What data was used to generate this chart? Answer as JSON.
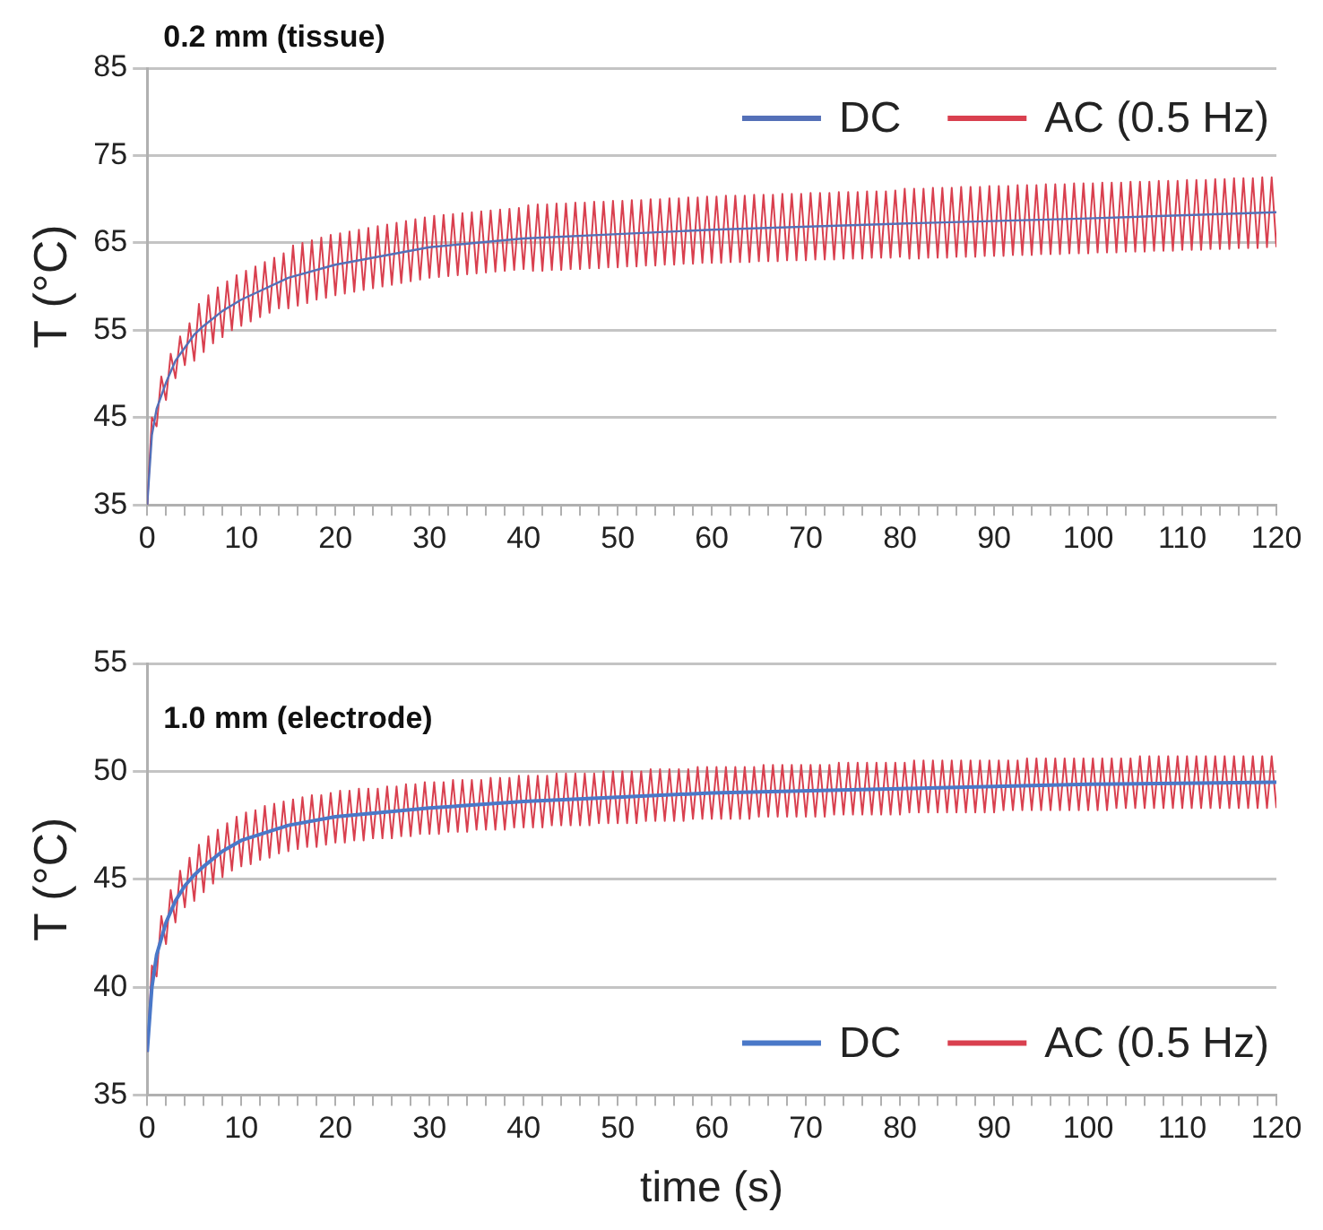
{
  "chart_data": [
    {
      "type": "line",
      "title": "0.2 mm (tissue)",
      "ylabel": "T (°C)",
      "ylim": [
        35,
        85
      ],
      "yticks": [
        35,
        45,
        55,
        65,
        75,
        85
      ],
      "xlim": [
        0,
        120
      ],
      "xticks": [
        0,
        {
          "value": 2,
          "label": null
        },
        {
          "value": 4,
          "label": null
        },
        {
          "value": 6,
          "label": null
        },
        {
          "value": 8,
          "label": null
        },
        10,
        {
          "value": 12,
          "label": null
        },
        {
          "value": 14,
          "label": null
        },
        {
          "value": 16,
          "label": null
        },
        {
          "value": 18,
          "label": null
        },
        20,
        {
          "value": 22,
          "label": null
        },
        {
          "value": 24,
          "label": null
        },
        {
          "value": 26,
          "label": null
        },
        {
          "value": 28,
          "label": null
        },
        30,
        {
          "value": 32,
          "label": null
        },
        {
          "value": 34,
          "label": null
        },
        {
          "value": 36,
          "label": null
        },
        {
          "value": 38,
          "label": null
        },
        40,
        {
          "value": 42,
          "label": null
        },
        {
          "value": 44,
          "label": null
        },
        {
          "value": 46,
          "label": null
        },
        {
          "value": 48,
          "label": null
        },
        50,
        {
          "value": 52,
          "label": null
        },
        {
          "value": 54,
          "label": null
        },
        {
          "value": 56,
          "label": null
        },
        {
          "value": 58,
          "label": null
        },
        60,
        {
          "value": 62,
          "label": null
        },
        {
          "value": 64,
          "label": null
        },
        {
          "value": 66,
          "label": null
        },
        {
          "value": 68,
          "label": null
        },
        70,
        {
          "value": 72,
          "label": null
        },
        {
          "value": 74,
          "label": null
        },
        {
          "value": 76,
          "label": null
        },
        {
          "value": 78,
          "label": null
        },
        80,
        {
          "value": 82,
          "label": null
        },
        {
          "value": 84,
          "label": null
        },
        {
          "value": 86,
          "label": null
        },
        {
          "value": 88,
          "label": null
        },
        90,
        {
          "value": 92,
          "label": null
        },
        {
          "value": 94,
          "label": null
        },
        {
          "value": 96,
          "label": null
        },
        {
          "value": 98,
          "label": null
        },
        100,
        {
          "value": 102,
          "label": null
        },
        {
          "value": 104,
          "label": null
        },
        {
          "value": 106,
          "label": null
        },
        {
          "value": 108,
          "label": null
        },
        110,
        {
          "value": 112,
          "label": null
        },
        {
          "value": 114,
          "label": null
        },
        {
          "value": 116,
          "label": null
        },
        {
          "value": 118,
          "label": null
        },
        120
      ],
      "grid": "y",
      "legend": "top right",
      "marker": "none",
      "line_style": "solid",
      "x": [
        0,
        0.5,
        1,
        1.5,
        2,
        2.5,
        3,
        3.5,
        4,
        4.5,
        5,
        5.5,
        6,
        6.5,
        7,
        7.5,
        8,
        8.5,
        9,
        9.5,
        10,
        10.5,
        11,
        11.5,
        12,
        12.5,
        13,
        13.5,
        14,
        14.5,
        15,
        15.5,
        16,
        16.5,
        17,
        17.5,
        18,
        18.5,
        19,
        19.5,
        20,
        20.5,
        21,
        21.5,
        22,
        22.5,
        23,
        23.5,
        24,
        24.5,
        25,
        25.5,
        26,
        26.5,
        27,
        27.5,
        28,
        28.5,
        29,
        29.5,
        30,
        30.5,
        31,
        31.5,
        32,
        32.5,
        33,
        33.5,
        34,
        34.5,
        35,
        35.5,
        36,
        36.5,
        37,
        37.5,
        38,
        38.5,
        39,
        39.5,
        40,
        40.5,
        41,
        41.5,
        42,
        42.5,
        43,
        43.5,
        44,
        44.5,
        45,
        45.5,
        46,
        46.5,
        47,
        47.5,
        48,
        48.5,
        49,
        49.5,
        50,
        50.5,
        51,
        51.5,
        52,
        52.5,
        53,
        53.5,
        54,
        54.5,
        55,
        55.5,
        56,
        56.5,
        57,
        57.5,
        58,
        58.5,
        59,
        59.5,
        60,
        60.5,
        61,
        61.5,
        62,
        62.5,
        63,
        63.5,
        64,
        64.5,
        65,
        65.5,
        66,
        66.5,
        67,
        67.5,
        68,
        68.5,
        69,
        69.5,
        70,
        70.5,
        71,
        71.5,
        72,
        72.5,
        73,
        73.5,
        74,
        74.5,
        75,
        75.5,
        76,
        76.5,
        77,
        77.5,
        78,
        78.5,
        79,
        79.5,
        80,
        80.5,
        81,
        81.5,
        82,
        82.5,
        83,
        83.5,
        84,
        84.5,
        85,
        85.5,
        86,
        86.5,
        87,
        87.5,
        88,
        88.5,
        89,
        89.5,
        90,
        90.5,
        91,
        91.5,
        92,
        92.5,
        93,
        93.5,
        94,
        94.5,
        95,
        95.5,
        96,
        96.5,
        97,
        97.5,
        98,
        98.5,
        99,
        99.5,
        100,
        100.5,
        101,
        101.5,
        102,
        102.5,
        103,
        103.5,
        104,
        104.5,
        105,
        105.5,
        106,
        106.5,
        107,
        107.5,
        108,
        108.5,
        109,
        109.5,
        110,
        110.5,
        111,
        111.5,
        112,
        112.5,
        113,
        113.5,
        114,
        114.5,
        115,
        115.5,
        116,
        116.5,
        117,
        117.5,
        118,
        118.5,
        119,
        119.5,
        120
      ],
      "series": [
        {
          "name": "DC",
          "color": "#5470b8",
          "x": [
            0,
            0.5,
            1,
            2,
            3,
            4,
            5,
            6,
            8,
            10,
            12,
            15,
            20,
            25,
            30,
            40,
            50,
            60,
            80,
            100,
            120
          ],
          "values": [
            35,
            43,
            46,
            49,
            51.5,
            53,
            54.5,
            55.5,
            57.2,
            58.5,
            59.5,
            61,
            62.5,
            63.5,
            64.5,
            65.5,
            66,
            66.5,
            67.2,
            67.8,
            68.5
          ]
        },
        {
          "name": "AC (0.5 Hz)",
          "color": "#d9404f",
          "values": [
            35,
            45,
            44,
            49.7,
            47,
            52.3,
            49.5,
            54.3,
            51,
            55.8,
            51.5,
            58,
            52.5,
            59,
            53.5,
            59.9,
            54.2,
            60.6,
            55,
            61.3,
            55.5,
            61.8,
            56,
            62.3,
            56.5,
            62.8,
            57,
            63.3,
            57.5,
            63.8,
            57.5,
            64.7,
            57.8,
            65,
            58.1,
            65.3,
            58.5,
            65.6,
            58.7,
            65.9,
            59,
            66.1,
            59.2,
            66.3,
            59.4,
            66.5,
            59.6,
            66.7,
            59.8,
            66.9,
            60,
            67.1,
            60.2,
            67.3,
            60.4,
            67.5,
            60.6,
            67.7,
            60.8,
            67.9,
            61,
            68.1,
            61.1,
            68.2,
            61.2,
            68.3,
            61.3,
            68.4,
            61.4,
            68.5,
            61.5,
            68.6,
            61.6,
            68.7,
            61.7,
            68.8,
            61.8,
            68.9,
            61.9,
            69,
            62,
            69.3,
            61.8,
            69.4,
            61.8,
            69.4,
            61.9,
            69.5,
            61.9,
            69.5,
            62,
            69.6,
            62,
            69.6,
            62.1,
            69.7,
            62.1,
            69.7,
            62.2,
            69.8,
            62.2,
            69.8,
            62.3,
            69.9,
            62.3,
            69.9,
            62.4,
            70,
            62.4,
            70,
            62.5,
            70.1,
            62.5,
            70.1,
            62.6,
            70.2,
            62.6,
            70.2,
            62.7,
            70.3,
            62.7,
            70.3,
            62.7,
            70.4,
            62.8,
            70.4,
            62.8,
            70.4,
            62.8,
            70.5,
            62.9,
            70.5,
            62.9,
            70.5,
            62.9,
            70.6,
            63,
            70.6,
            63,
            70.6,
            63,
            70.7,
            63.1,
            70.7,
            63.1,
            70.7,
            63.1,
            70.8,
            63.2,
            70.8,
            63.2,
            70.8,
            63.2,
            70.9,
            63.3,
            70.9,
            63.3,
            70.9,
            63.3,
            71,
            63.4,
            71.2,
            63.2,
            71.2,
            63.2,
            71.2,
            63.3,
            71.3,
            63.3,
            71.3,
            63.3,
            71.3,
            63.4,
            71.4,
            63.4,
            71.4,
            63.4,
            71.4,
            63.5,
            71.5,
            63.5,
            71.5,
            63.5,
            71.5,
            63.6,
            71.6,
            63.6,
            71.6,
            63.6,
            71.6,
            63.7,
            71.7,
            63.7,
            71.7,
            63.7,
            71.7,
            63.8,
            71.8,
            63.8,
            71.8,
            63.8,
            71.8,
            63.9,
            71.9,
            63.9,
            71.9,
            63.9,
            71.9,
            64,
            72,
            64,
            72,
            64,
            72,
            64.1,
            72.1,
            64.1,
            72.1,
            64.1,
            72.1,
            64.2,
            72.2,
            64.2,
            72.2,
            64.2,
            72.2,
            64.3,
            72.3,
            64.3,
            72.3,
            64.3,
            72.4,
            64.4,
            72.4,
            64.4,
            72.4,
            64.4,
            72.5,
            64.5,
            72.5,
            64.5
          ]
        }
      ]
    },
    {
      "type": "line",
      "title": "1.0 mm (electrode)",
      "xlabel": "time (s)",
      "ylabel": "T (°C)",
      "ylim": [
        35,
        55
      ],
      "yticks": [
        35,
        40,
        45,
        50,
        55
      ],
      "xlim": [
        0,
        120
      ],
      "xticks": [
        0,
        {
          "value": 2,
          "label": null
        },
        {
          "value": 4,
          "label": null
        },
        {
          "value": 6,
          "label": null
        },
        {
          "value": 8,
          "label": null
        },
        10,
        {
          "value": 12,
          "label": null
        },
        {
          "value": 14,
          "label": null
        },
        {
          "value": 16,
          "label": null
        },
        {
          "value": 18,
          "label": null
        },
        20,
        {
          "value": 22,
          "label": null
        },
        {
          "value": 24,
          "label": null
        },
        {
          "value": 26,
          "label": null
        },
        {
          "value": 28,
          "label": null
        },
        30,
        {
          "value": 32,
          "label": null
        },
        {
          "value": 34,
          "label": null
        },
        {
          "value": 36,
          "label": null
        },
        {
          "value": 38,
          "label": null
        },
        40,
        {
          "value": 42,
          "label": null
        },
        {
          "value": 44,
          "label": null
        },
        {
          "value": 46,
          "label": null
        },
        {
          "value": 48,
          "label": null
        },
        50,
        {
          "value": 52,
          "label": null
        },
        {
          "value": 54,
          "label": null
        },
        {
          "value": 56,
          "label": null
        },
        {
          "value": 58,
          "label": null
        },
        60,
        {
          "value": 62,
          "label": null
        },
        {
          "value": 64,
          "label": null
        },
        {
          "value": 66,
          "label": null
        },
        {
          "value": 68,
          "label": null
        },
        70,
        {
          "value": 72,
          "label": null
        },
        {
          "value": 74,
          "label": null
        },
        {
          "value": 76,
          "label": null
        },
        {
          "value": 78,
          "label": null
        },
        80,
        {
          "value": 82,
          "label": null
        },
        {
          "value": 84,
          "label": null
        },
        {
          "value": 86,
          "label": null
        },
        {
          "value": 88,
          "label": null
        },
        90,
        {
          "value": 92,
          "label": null
        },
        {
          "value": 94,
          "label": null
        },
        {
          "value": 96,
          "label": null
        },
        {
          "value": 98,
          "label": null
        },
        100,
        {
          "value": 102,
          "label": null
        },
        {
          "value": 104,
          "label": null
        },
        {
          "value": 106,
          "label": null
        },
        {
          "value": 108,
          "label": null
        },
        110,
        {
          "value": 112,
          "label": null
        },
        {
          "value": 114,
          "label": null
        },
        {
          "value": 116,
          "label": null
        },
        {
          "value": 118,
          "label": null
        },
        120
      ],
      "grid": "y",
      "legend": "bottom right",
      "marker": "none",
      "line_style": "solid",
      "x": [
        0,
        0.5,
        1,
        1.5,
        2,
        2.5,
        3,
        3.5,
        4,
        4.5,
        5,
        5.5,
        6,
        6.5,
        7,
        7.5,
        8,
        8.5,
        9,
        9.5,
        10,
        10.5,
        11,
        11.5,
        12,
        12.5,
        13,
        13.5,
        14,
        14.5,
        15,
        15.5,
        16,
        16.5,
        17,
        17.5,
        18,
        18.5,
        19,
        19.5,
        20,
        20.5,
        21,
        21.5,
        22,
        22.5,
        23,
        23.5,
        24,
        24.5,
        25,
        25.5,
        26,
        26.5,
        27,
        27.5,
        28,
        28.5,
        29,
        29.5,
        30,
        30.5,
        31,
        31.5,
        32,
        32.5,
        33,
        33.5,
        34,
        34.5,
        35,
        35.5,
        36,
        36.5,
        37,
        37.5,
        38,
        38.5,
        39,
        39.5,
        40,
        40.5,
        41,
        41.5,
        42,
        42.5,
        43,
        43.5,
        44,
        44.5,
        45,
        45.5,
        46,
        46.5,
        47,
        47.5,
        48,
        48.5,
        49,
        49.5,
        50,
        50.5,
        51,
        51.5,
        52,
        52.5,
        53,
        53.5,
        54,
        54.5,
        55,
        55.5,
        56,
        56.5,
        57,
        57.5,
        58,
        58.5,
        59,
        59.5,
        60,
        60.5,
        61,
        61.5,
        62,
        62.5,
        63,
        63.5,
        64,
        64.5,
        65,
        65.5,
        66,
        66.5,
        67,
        67.5,
        68,
        68.5,
        69,
        69.5,
        70,
        70.5,
        71,
        71.5,
        72,
        72.5,
        73,
        73.5,
        74,
        74.5,
        75,
        75.5,
        76,
        76.5,
        77,
        77.5,
        78,
        78.5,
        79,
        79.5,
        80,
        80.5,
        81,
        81.5,
        82,
        82.5,
        83,
        83.5,
        84,
        84.5,
        85,
        85.5,
        86,
        86.5,
        87,
        87.5,
        88,
        88.5,
        89,
        89.5,
        90,
        90.5,
        91,
        91.5,
        92,
        92.5,
        93,
        93.5,
        94,
        94.5,
        95,
        95.5,
        96,
        96.5,
        97,
        97.5,
        98,
        98.5,
        99,
        99.5,
        100,
        100.5,
        101,
        101.5,
        102,
        102.5,
        103,
        103.5,
        104,
        104.5,
        105,
        105.5,
        106,
        106.5,
        107,
        107.5,
        108,
        108.5,
        109,
        109.5,
        110,
        110.5,
        111,
        111.5,
        112,
        112.5,
        113,
        113.5,
        114,
        114.5,
        115,
        115.5,
        116,
        116.5,
        117,
        117.5,
        118,
        118.5,
        119,
        119.5,
        120
      ],
      "series": [
        {
          "name": "AC (0.5 Hz)",
          "color": "#d9404f",
          "values": [
            37,
            41,
            40.5,
            43.3,
            42,
            44.5,
            43,
            45.4,
            43.7,
            46,
            44,
            46.6,
            44.4,
            47,
            44.8,
            47.3,
            45.1,
            47.6,
            45.4,
            47.9,
            45.6,
            48.1,
            45.7,
            48.2,
            45.9,
            48.4,
            46,
            48.5,
            46.2,
            48.6,
            46.3,
            48.7,
            46.4,
            48.8,
            46.5,
            48.9,
            46.5,
            48.9,
            46.6,
            49,
            46.7,
            49.1,
            46.7,
            49.1,
            46.8,
            49.2,
            46.8,
            49.2,
            46.9,
            49.2,
            46.9,
            49.3,
            46.9,
            49.3,
            47,
            49.4,
            47,
            49.4,
            47.1,
            49.5,
            47.1,
            49.5,
            47.1,
            49.5,
            47.2,
            49.6,
            47.2,
            49.6,
            47.2,
            49.6,
            47.3,
            49.6,
            47.3,
            49.7,
            47.3,
            49.7,
            47.3,
            49.7,
            47.4,
            49.8,
            47.4,
            49.8,
            47.4,
            49.8,
            47.4,
            49.8,
            47.5,
            49.9,
            47.5,
            49.9,
            47.5,
            49.9,
            47.5,
            49.9,
            47.5,
            49.9,
            47.6,
            50,
            47.6,
            50,
            47.6,
            50,
            47.6,
            50,
            47.6,
            50,
            47.7,
            50.1,
            47.7,
            50.1,
            47.7,
            50.1,
            47.7,
            50.1,
            47.7,
            50.1,
            47.8,
            50.2,
            47.8,
            50.2,
            47.8,
            50.2,
            47.8,
            50.2,
            47.8,
            50.2,
            47.8,
            50.2,
            47.8,
            50.2,
            47.9,
            50.3,
            47.9,
            50.3,
            47.9,
            50.3,
            47.9,
            50.3,
            47.9,
            50.3,
            47.9,
            50.3,
            47.9,
            50.3,
            47.9,
            50.3,
            48,
            50.4,
            48,
            50.4,
            48,
            50.4,
            48,
            50.4,
            48,
            50.4,
            48,
            50.4,
            48,
            50.4,
            48,
            50.4,
            48.1,
            50.5,
            48.1,
            50.5,
            48.1,
            50.5,
            48.1,
            50.5,
            48.1,
            50.5,
            48.1,
            50.5,
            48.1,
            50.5,
            48.1,
            50.5,
            48.1,
            50.5,
            48.1,
            50.5,
            48.2,
            50.5,
            48.2,
            50.5,
            48.2,
            50.6,
            48.2,
            50.6,
            48.2,
            50.6,
            48.2,
            50.6,
            48.2,
            50.6,
            48.2,
            50.6,
            48.2,
            50.6,
            48.2,
            50.6,
            48.2,
            50.6,
            48.2,
            50.6,
            48.3,
            50.6,
            48.3,
            50.6,
            48.3,
            50.7,
            48.3,
            50.7,
            48.3,
            50.7,
            48.3,
            50.7,
            48.3,
            50.7,
            48.3,
            50.7,
            48.3,
            50.7,
            48.3,
            50.7,
            48.3,
            50.7,
            48.3,
            50.7,
            48.3,
            50.7,
            48.3,
            50.7,
            48.3,
            50.7,
            48.3,
            50.7,
            48.3,
            50.7,
            48.3
          ]
        },
        {
          "name": "DC",
          "color": "#4a78c8",
          "x": [
            0,
            0.5,
            1,
            2,
            3,
            4,
            5,
            6,
            8,
            10,
            15,
            20,
            30,
            40,
            50,
            60,
            80,
            100,
            120
          ],
          "values": [
            37,
            40,
            41.5,
            43,
            44,
            44.7,
            45.2,
            45.6,
            46.3,
            46.8,
            47.5,
            47.9,
            48.3,
            48.6,
            48.8,
            49,
            49.2,
            49.4,
            49.5
          ]
        }
      ]
    }
  ]
}
